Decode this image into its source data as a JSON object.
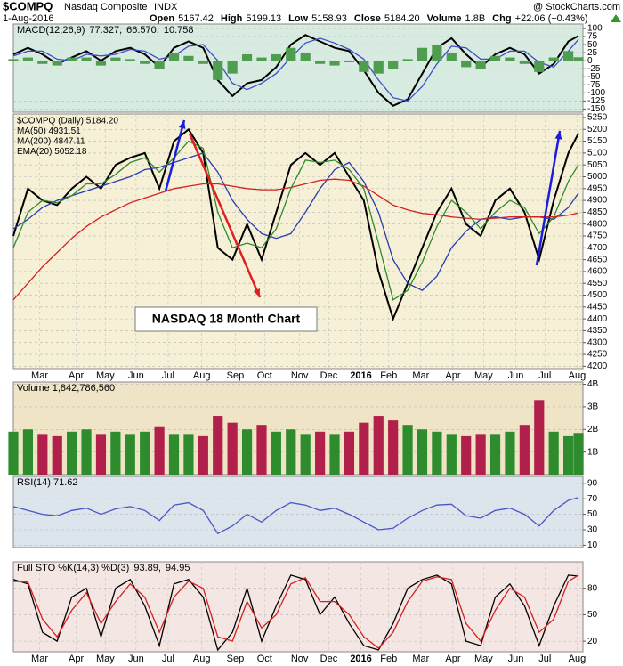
{
  "header": {
    "symbol": "$COMPQ",
    "name": "Nasdaq Composite",
    "exchange": "INDX",
    "brand": "@ StockCharts.com",
    "date": "1-Aug-2016",
    "quote": [
      [
        "Open",
        "5167.42"
      ],
      [
        "High",
        "5199.13"
      ],
      [
        "Low",
        "5158.93"
      ],
      [
        "Close",
        "5184.20"
      ],
      [
        "Volume",
        "1.8B"
      ],
      [
        "Chg",
        "+22.06 (+0.43%)"
      ]
    ]
  },
  "chart_data": [
    {
      "type": "line",
      "title": "MACD(12,26,9)",
      "background": "#d8ebe0",
      "grid": true,
      "x": [
        0,
        10,
        20,
        30,
        40,
        50,
        60,
        70,
        80,
        90,
        100,
        110,
        120,
        130,
        140,
        150,
        160,
        170,
        180,
        190,
        200,
        210,
        220,
        230,
        240,
        250,
        260,
        270,
        280,
        290,
        300,
        310,
        320,
        330,
        340,
        350,
        360,
        370,
        380,
        387
      ],
      "xlim": [
        0,
        390
      ],
      "ylim": [
        -160,
        114
      ],
      "yticks": [
        100,
        75,
        50,
        25,
        0,
        -25,
        -50,
        -75,
        -100,
        -125,
        -150
      ],
      "series": [
        {
          "name": "77.327,",
          "type": "line",
          "color": "#000000",
          "values": [
            20,
            40,
            20,
            -10,
            10,
            30,
            0,
            30,
            40,
            20,
            -20,
            40,
            60,
            40,
            -60,
            -110,
            -70,
            -60,
            -20,
            50,
            80,
            60,
            40,
            30,
            -30,
            -100,
            -140,
            -120,
            -40,
            40,
            70,
            20,
            -20,
            20,
            40,
            20,
            -40,
            -10,
            60,
            77.327
          ]
        },
        {
          "name": "66.570,",
          "type": "line",
          "color": "#3f4fc9",
          "values": [
            15,
            30,
            30,
            5,
            0,
            20,
            15,
            20,
            35,
            30,
            5,
            15,
            45,
            50,
            0,
            -70,
            -90,
            -70,
            -40,
            10,
            55,
            70,
            55,
            35,
            5,
            -60,
            -115,
            -125,
            -80,
            -10,
            45,
            40,
            5,
            5,
            30,
            30,
            -5,
            -20,
            30,
            66.57
          ]
        },
        {
          "name": "10.758",
          "type": "bar",
          "color": "#4f9e4f",
          "values": [
            5,
            10,
            -10,
            -15,
            10,
            10,
            -15,
            10,
            5,
            -10,
            -25,
            25,
            15,
            -10,
            -60,
            -40,
            20,
            10,
            20,
            40,
            25,
            -10,
            -15,
            -5,
            -35,
            -40,
            -25,
            5,
            40,
            50,
            25,
            -20,
            -25,
            15,
            10,
            -10,
            -35,
            10,
            30,
            10.758
          ]
        }
      ]
    },
    {
      "type": "line",
      "background": "#f6f1d6",
      "grid": true,
      "annotation": "NASDAQ 18 Month Chart",
      "x": [
        0,
        10,
        20,
        30,
        40,
        50,
        60,
        70,
        80,
        90,
        100,
        110,
        120,
        130,
        140,
        150,
        160,
        170,
        180,
        190,
        200,
        210,
        220,
        230,
        240,
        250,
        260,
        270,
        280,
        290,
        300,
        310,
        320,
        330,
        340,
        350,
        360,
        370,
        380,
        387
      ],
      "xlim": [
        0,
        390
      ],
      "ylim": [
        4190,
        5265
      ],
      "xticks": [
        {
          "value": 18,
          "label": "Mar"
        },
        {
          "value": 43,
          "label": "Apr"
        },
        {
          "value": 63,
          "label": "May"
        },
        {
          "value": 84,
          "label": "Jun"
        },
        {
          "value": 106,
          "label": "Jul"
        },
        {
          "value": 129,
          "label": "Aug"
        },
        {
          "value": 152,
          "label": "Sep"
        },
        {
          "value": 172,
          "label": "Oct"
        },
        {
          "value": 196,
          "label": "Nov"
        },
        {
          "value": 216,
          "label": "Dec"
        },
        {
          "value": 238,
          "label": "2016"
        },
        {
          "value": 257,
          "label": "Feb"
        },
        {
          "value": 279,
          "label": "Mar"
        },
        {
          "value": 301,
          "label": "Apr"
        },
        {
          "value": 322,
          "label": "May"
        },
        {
          "value": 344,
          "label": "Jun"
        },
        {
          "value": 364,
          "label": "Jul"
        },
        {
          "value": 386,
          "label": "Aug"
        }
      ],
      "yticks": [
        5250,
        5200,
        5150,
        5100,
        5050,
        5000,
        4950,
        4900,
        4850,
        4800,
        4750,
        4700,
        4650,
        4600,
        4550,
        4500,
        4450,
        4400,
        4350,
        4300,
        4250,
        4200
      ],
      "series": [
        {
          "name": "$COMPQ (Daily) 5184.20",
          "color": "#000000",
          "values": [
            4750,
            4950,
            4900,
            4880,
            4950,
            5000,
            4950,
            5050,
            5080,
            5100,
            4950,
            5150,
            5200,
            5100,
            4700,
            4650,
            4800,
            4650,
            4850,
            5050,
            5100,
            5050,
            5100,
            5000,
            4900,
            4600,
            4400,
            4550,
            4700,
            4850,
            4950,
            4800,
            4750,
            4900,
            4950,
            4850,
            4650,
            4900,
            5100,
            5184.2
          ]
        },
        {
          "name": "MA(50) 4931.51",
          "color": "#2b3bb0",
          "values": [
            4780,
            4820,
            4870,
            4900,
            4920,
            4940,
            4960,
            4980,
            5000,
            5030,
            5040,
            5060,
            5080,
            5100,
            5020,
            4900,
            4820,
            4760,
            4740,
            4760,
            4850,
            4950,
            5030,
            5060,
            4980,
            4850,
            4650,
            4550,
            4520,
            4580,
            4700,
            4770,
            4820,
            4830,
            4820,
            4830,
            4830,
            4820,
            4870,
            4931.51
          ]
        },
        {
          "name": "MA(200) 4847.11",
          "color": "#d42020",
          "values": [
            4480,
            4550,
            4620,
            4680,
            4740,
            4790,
            4830,
            4860,
            4890,
            4910,
            4930,
            4950,
            4960,
            4970,
            4970,
            4960,
            4950,
            4945,
            4945,
            4955,
            4970,
            4985,
            4990,
            4985,
            4960,
            4920,
            4880,
            4860,
            4845,
            4840,
            4830,
            4825,
            4820,
            4825,
            4830,
            4830,
            4830,
            4830,
            4838,
            4847.11
          ]
        },
        {
          "name": "EMA(20) 5052.18",
          "color": "#2f8a2f",
          "values": [
            4700,
            4850,
            4900,
            4890,
            4920,
            4970,
            4970,
            5010,
            5060,
            5080,
            5020,
            5080,
            5150,
            5120,
            4850,
            4700,
            4720,
            4700,
            4780,
            4950,
            5070,
            5060,
            5070,
            5030,
            4950,
            4720,
            4480,
            4520,
            4640,
            4790,
            4900,
            4850,
            4780,
            4850,
            4900,
            4870,
            4760,
            4830,
            4980,
            5052.18
          ]
        }
      ]
    },
    {
      "type": "bar",
      "title": "Volume 1,842,786,560",
      "background": "#efe5c6",
      "grid": true,
      "x": [
        0,
        10,
        20,
        30,
        40,
        50,
        60,
        70,
        80,
        90,
        100,
        110,
        120,
        130,
        140,
        150,
        160,
        170,
        180,
        190,
        200,
        210,
        220,
        230,
        240,
        250,
        260,
        270,
        280,
        290,
        300,
        310,
        320,
        330,
        340,
        350,
        360,
        370,
        380,
        387
      ],
      "xlim": [
        0,
        390
      ],
      "ylim": [
        0,
        4100000000
      ],
      "yticks": [
        {
          "value": 4000000000,
          "label": "4B"
        },
        {
          "value": 3000000000,
          "label": "3B"
        },
        {
          "value": 2000000000,
          "label": "2B"
        },
        {
          "value": 1000000000,
          "label": "1B"
        }
      ],
      "series": [
        {
          "color": "#2e8b2e",
          "down_color": "#b0204a",
          "values": [
            1900000000,
            2000000000,
            1800000000,
            1700000000,
            1900000000,
            2000000000,
            1800000000,
            1900000000,
            1800000000,
            1900000000,
            2100000000,
            1800000000,
            1800000000,
            1700000000,
            2600000000,
            2300000000,
            2000000000,
            2200000000,
            1900000000,
            2000000000,
            1800000000,
            1900000000,
            1800000000,
            1900000000,
            2300000000,
            2600000000,
            2400000000,
            2200000000,
            2000000000,
            1900000000,
            1800000000,
            1700000000,
            1800000000,
            1800000000,
            1900000000,
            2200000000,
            3300000000,
            1900000000,
            1700000000,
            1842786560
          ]
        }
      ]
    },
    {
      "type": "line",
      "title": "RSI(14) 71.62",
      "background": "#dce4ec",
      "grid": true,
      "x": [
        0,
        10,
        20,
        30,
        40,
        50,
        60,
        70,
        80,
        90,
        100,
        110,
        120,
        130,
        140,
        150,
        160,
        170,
        180,
        190,
        200,
        210,
        220,
        230,
        240,
        250,
        260,
        270,
        280,
        290,
        300,
        310,
        320,
        330,
        340,
        350,
        360,
        370,
        380,
        387
      ],
      "xlim": [
        0,
        390
      ],
      "ylim": [
        7,
        99
      ],
      "yticks": [
        90,
        70,
        50,
        30,
        10
      ],
      "series": [
        {
          "color": "#4a55c8",
          "values": [
            60,
            55,
            50,
            48,
            55,
            58,
            50,
            57,
            60,
            55,
            42,
            62,
            65,
            55,
            25,
            35,
            50,
            40,
            55,
            65,
            62,
            55,
            58,
            50,
            40,
            30,
            32,
            45,
            55,
            62,
            63,
            48,
            45,
            55,
            58,
            50,
            35,
            55,
            68,
            71.62
          ]
        }
      ]
    },
    {
      "type": "line",
      "title": "Full STO %K(14,3) %D(3)",
      "background": "#f4e6e2",
      "grid": true,
      "x": [
        0,
        10,
        20,
        30,
        40,
        50,
        60,
        70,
        80,
        90,
        100,
        110,
        120,
        130,
        140,
        150,
        160,
        170,
        180,
        190,
        200,
        210,
        220,
        230,
        240,
        250,
        260,
        270,
        280,
        290,
        300,
        310,
        320,
        330,
        340,
        350,
        360,
        370,
        380,
        387
      ],
      "xlim": [
        0,
        390
      ],
      "ylim": [
        8,
        110
      ],
      "xticks": [
        {
          "value": 18,
          "label": "Mar"
        },
        {
          "value": 43,
          "label": "Apr"
        },
        {
          "value": 63,
          "label": "May"
        },
        {
          "value": 84,
          "label": "Jun"
        },
        {
          "value": 106,
          "label": "Jul"
        },
        {
          "value": 129,
          "label": "Aug"
        },
        {
          "value": 152,
          "label": "Sep"
        },
        {
          "value": 172,
          "label": "Oct"
        },
        {
          "value": 196,
          "label": "Nov"
        },
        {
          "value": 216,
          "label": "Dec"
        },
        {
          "value": 238,
          "label": "2016"
        },
        {
          "value": 257,
          "label": "Feb"
        },
        {
          "value": 279,
          "label": "Mar"
        },
        {
          "value": 301,
          "label": "Apr"
        },
        {
          "value": 322,
          "label": "May"
        },
        {
          "value": 344,
          "label": "Jun"
        },
        {
          "value": 364,
          "label": "Jul"
        },
        {
          "value": 386,
          "label": "Aug"
        }
      ],
      "yticks": [
        80,
        50,
        20
      ],
      "series": [
        {
          "name": "93.89,",
          "color": "#000000",
          "values": [
            90,
            85,
            30,
            20,
            70,
            80,
            25,
            80,
            90,
            60,
            15,
            85,
            90,
            70,
            10,
            30,
            80,
            20,
            60,
            95,
            90,
            50,
            70,
            40,
            15,
            10,
            40,
            80,
            90,
            95,
            85,
            20,
            15,
            70,
            85,
            60,
            15,
            60,
            95,
            93.89
          ]
        },
        {
          "name": "94.95",
          "color": "#d42020",
          "values": [
            88,
            87,
            45,
            25,
            55,
            75,
            40,
            65,
            85,
            70,
            30,
            70,
            88,
            80,
            25,
            20,
            65,
            35,
            50,
            85,
            92,
            65,
            65,
            50,
            25,
            12,
            30,
            65,
            88,
            93,
            90,
            40,
            20,
            55,
            80,
            70,
            30,
            45,
            88,
            94.95
          ]
        }
      ]
    }
  ]
}
